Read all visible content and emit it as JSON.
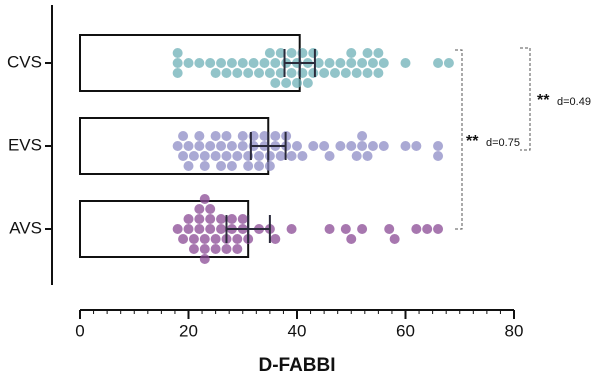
{
  "chart_data": {
    "type": "bar-swarm",
    "orientation": "horizontal",
    "xlabel": "D-FABBI",
    "xlim": [
      0,
      80
    ],
    "xticks": [
      0,
      20,
      40,
      60,
      80
    ],
    "series": [
      {
        "name": "CVS",
        "color": "#6eb0b7",
        "value": 40.5,
        "error": 2.8,
        "points": [
          18,
          18,
          18,
          20,
          22,
          24,
          25,
          26,
          27,
          28,
          29,
          30,
          31,
          32,
          33,
          34,
          35,
          35,
          36,
          36,
          37,
          37,
          38,
          38,
          39,
          39,
          40,
          40,
          41,
          41,
          42,
          42,
          43,
          43,
          44,
          45,
          46,
          47,
          48,
          49,
          50,
          50,
          51,
          52,
          53,
          53,
          54,
          55,
          55,
          56,
          60,
          66,
          68
        ]
      },
      {
        "name": "EVS",
        "color": "#8e8cc6",
        "value": 34.7,
        "error": 3.2,
        "points": [
          18,
          19,
          19,
          20,
          20,
          21,
          22,
          22,
          23,
          23,
          24,
          25,
          25,
          26,
          26,
          27,
          27,
          28,
          28,
          29,
          30,
          30,
          31,
          31,
          32,
          32,
          33,
          33,
          34,
          34,
          35,
          35,
          36,
          36,
          37,
          38,
          38,
          39,
          40,
          41,
          43,
          45,
          46,
          48,
          50,
          51,
          52,
          52,
          53,
          54,
          56,
          60,
          62,
          66,
          66
        ]
      },
      {
        "name": "AVS",
        "color": "#8a4a94",
        "value": 31,
        "error": 4,
        "points": [
          18,
          19,
          20,
          20,
          21,
          21,
          22,
          22,
          22,
          23,
          23,
          23,
          23,
          24,
          24,
          24,
          25,
          25,
          26,
          26,
          27,
          27,
          28,
          28,
          29,
          29,
          30,
          30,
          31,
          33,
          35,
          36,
          39,
          46,
          49,
          50,
          52,
          57,
          58,
          62,
          64,
          66
        ]
      }
    ],
    "annotations": [
      {
        "stars": "**",
        "text": "d=0.75"
      },
      {
        "stars": "**",
        "text": "d=0.49"
      }
    ]
  }
}
